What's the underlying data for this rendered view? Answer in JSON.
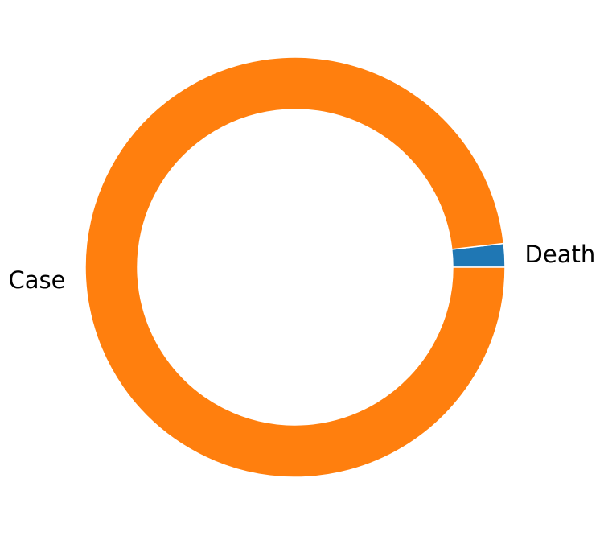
{
  "chart_data": {
    "type": "pie",
    "donut": true,
    "categories": [
      "Death",
      "Case"
    ],
    "values": [
      1.8,
      98.2
    ],
    "colors": [
      "#1f77b4",
      "#ff7f0e"
    ],
    "start_angle_deg": 0,
    "direction": "counterclockwise",
    "legend": "none"
  }
}
